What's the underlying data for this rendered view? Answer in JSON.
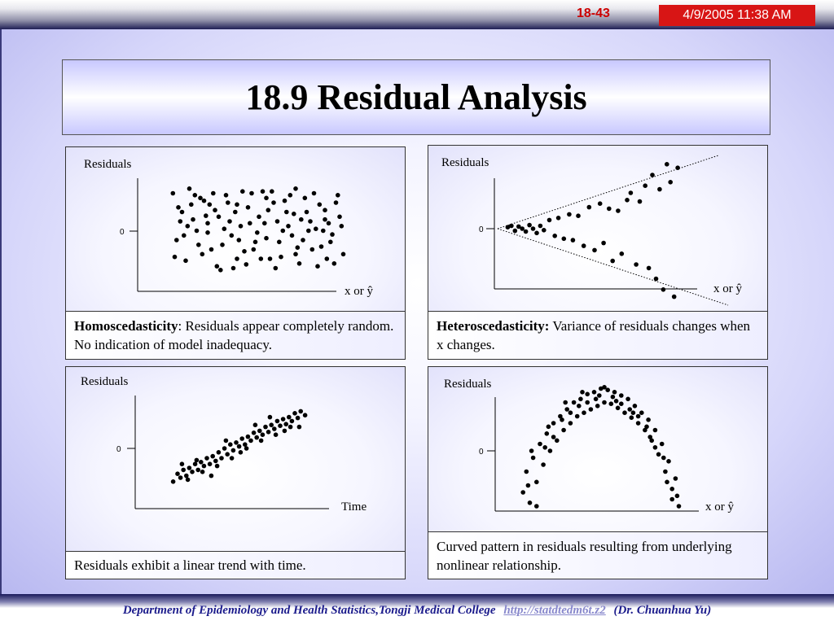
{
  "header": {
    "slide_number": "18-43",
    "datetime": "4/9/2005 11:38 AM"
  },
  "title": "18.9  Residual Analysis",
  "footer": {
    "department": "Department of Epidemiology and Health Statistics,Tongji Medical College",
    "link": "http://statdtedm6t.z2",
    "author": "(Dr. Chuanhua Yu)"
  },
  "colors": {
    "title_gradient": "#c8c8ff",
    "accent_red": "#d81515",
    "footer_text": "#1c1c8c"
  },
  "chart_data": [
    {
      "type": "scatter",
      "pattern": "homoscedastic",
      "ylabel": "Residuals",
      "xlabel": "x or ŷ",
      "zero_tick": "0",
      "caption_bold": "Homoscedasticity",
      "caption_text": ": Residuals appear completely random.  No indication of model inadequacy.",
      "points": [
        [
          0.05,
          0.9
        ],
        [
          0.1,
          0.7
        ],
        [
          0.14,
          0.95
        ],
        [
          0.18,
          0.5
        ],
        [
          0.22,
          0.82
        ],
        [
          0.26,
          0.3
        ],
        [
          0.3,
          0.65
        ],
        [
          0.34,
          0.88
        ],
        [
          0.38,
          0.1
        ],
        [
          0.42,
          0.55
        ],
        [
          0.46,
          0.75
        ],
        [
          0.5,
          0.38
        ],
        [
          0.54,
          0.92
        ],
        [
          0.58,
          0.2
        ],
        [
          0.62,
          0.6
        ],
        [
          0.66,
          0.82
        ],
        [
          0.7,
          0.45
        ],
        [
          0.74,
          0.15
        ],
        [
          0.78,
          0.7
        ],
        [
          0.82,
          0.9
        ],
        [
          0.86,
          0.33
        ],
        [
          0.9,
          0.58
        ],
        [
          0.94,
          0.8
        ],
        [
          0.98,
          0.25
        ],
        [
          0.07,
          0.4
        ],
        [
          0.12,
          0.18
        ],
        [
          0.16,
          0.62
        ],
        [
          0.2,
          0.85
        ],
        [
          0.24,
          0.48
        ],
        [
          0.28,
          0.72
        ],
        [
          0.32,
          0.35
        ],
        [
          0.36,
          0.6
        ],
        [
          0.4,
          0.78
        ],
        [
          0.44,
          0.28
        ],
        [
          0.48,
          0.9
        ],
        [
          0.52,
          0.65
        ],
        [
          0.56,
          0.42
        ],
        [
          0.6,
          0.8
        ],
        [
          0.64,
          0.22
        ],
        [
          0.68,
          0.55
        ],
        [
          0.72,
          0.95
        ],
        [
          0.76,
          0.4
        ],
        [
          0.8,
          0.6
        ],
        [
          0.84,
          0.12
        ],
        [
          0.88,
          0.72
        ],
        [
          0.92,
          0.46
        ],
        [
          0.96,
          0.65
        ],
        [
          0.09,
          0.6
        ],
        [
          0.15,
          0.78
        ],
        [
          0.21,
          0.25
        ],
        [
          0.27,
          0.9
        ],
        [
          0.33,
          0.52
        ],
        [
          0.39,
          0.7
        ],
        [
          0.45,
          0.14
        ],
        [
          0.51,
          0.48
        ],
        [
          0.57,
          0.72
        ],
        [
          0.63,
          0.38
        ],
        [
          0.69,
          0.88
        ],
        [
          0.75,
          0.62
        ],
        [
          0.81,
          0.3
        ],
        [
          0.87,
          0.5
        ],
        [
          0.93,
          0.15
        ],
        [
          0.06,
          0.22
        ],
        [
          0.11,
          0.45
        ],
        [
          0.17,
          0.88
        ],
        [
          0.23,
          0.66
        ],
        [
          0.29,
          0.12
        ],
        [
          0.35,
          0.8
        ],
        [
          0.41,
          0.4
        ],
        [
          0.47,
          0.58
        ],
        [
          0.53,
          0.2
        ],
        [
          0.59,
          0.92
        ],
        [
          0.65,
          0.5
        ],
        [
          0.71,
          0.68
        ],
        [
          0.77,
          0.85
        ],
        [
          0.83,
          0.52
        ],
        [
          0.89,
          0.2
        ],
        [
          0.95,
          0.88
        ],
        [
          0.13,
          0.55
        ],
        [
          0.19,
          0.35
        ],
        [
          0.25,
          0.78
        ],
        [
          0.31,
          0.08
        ],
        [
          0.37,
          0.45
        ],
        [
          0.43,
          0.92
        ],
        [
          0.49,
          0.3
        ],
        [
          0.55,
          0.58
        ],
        [
          0.61,
          0.1
        ],
        [
          0.67,
          0.7
        ],
        [
          0.73,
          0.32
        ],
        [
          0.79,
          0.5
        ],
        [
          0.85,
          0.78
        ],
        [
          0.91,
          0.38
        ],
        [
          0.97,
          0.55
        ],
        [
          0.08,
          0.75
        ],
        [
          0.24,
          0.58
        ],
        [
          0.4,
          0.2
        ],
        [
          0.56,
          0.85
        ],
        [
          0.72,
          0.25
        ],
        [
          0.88,
          0.62
        ]
      ]
    },
    {
      "type": "scatter",
      "pattern": "heteroscedastic",
      "ylabel": "Residuals",
      "xlabel": "x or ŷ",
      "zero_tick": "0",
      "caption_bold": "Heteroscedasticity:",
      "caption_text": " Variance of residuals changes when x changes.",
      "points": [
        [
          0.02,
          0.02
        ],
        [
          0.04,
          0.04
        ],
        [
          0.06,
          -0.03
        ],
        [
          0.08,
          0.03
        ],
        [
          0.1,
          0.0
        ],
        [
          0.12,
          -0.04
        ],
        [
          0.14,
          0.05
        ],
        [
          0.16,
          0.0
        ],
        [
          0.18,
          -0.06
        ],
        [
          0.2,
          0.04
        ],
        [
          0.22,
          -0.02
        ],
        [
          0.25,
          0.12
        ],
        [
          0.28,
          -0.1
        ],
        [
          0.3,
          0.15
        ],
        [
          0.33,
          -0.14
        ],
        [
          0.36,
          0.2
        ],
        [
          0.38,
          -0.16
        ],
        [
          0.41,
          0.18
        ],
        [
          0.44,
          -0.24
        ],
        [
          0.47,
          0.3
        ],
        [
          0.5,
          -0.3
        ],
        [
          0.53,
          0.35
        ],
        [
          0.55,
          -0.2
        ],
        [
          0.58,
          0.28
        ],
        [
          0.6,
          -0.45
        ],
        [
          0.63,
          0.25
        ],
        [
          0.65,
          -0.35
        ],
        [
          0.68,
          0.4
        ],
        [
          0.7,
          0.5
        ],
        [
          0.73,
          -0.5
        ],
        [
          0.75,
          0.38
        ],
        [
          0.78,
          0.6
        ],
        [
          0.8,
          -0.55
        ],
        [
          0.82,
          0.75
        ],
        [
          0.84,
          -0.7
        ],
        [
          0.86,
          0.55
        ],
        [
          0.88,
          -0.85
        ],
        [
          0.9,
          0.9
        ],
        [
          0.92,
          0.65
        ],
        [
          0.94,
          -0.95
        ],
        [
          0.96,
          0.85
        ]
      ]
    },
    {
      "type": "scatter",
      "pattern": "linear-trend",
      "ylabel": "Residuals",
      "xlabel": "Time",
      "zero_tick": "0",
      "caption_text": "Residuals exhibit a linear trend with time.",
      "points": [
        [
          0.02,
          -0.85
        ],
        [
          0.05,
          -0.65
        ],
        [
          0.07,
          -0.75
        ],
        [
          0.09,
          -0.55
        ],
        [
          0.11,
          -0.7
        ],
        [
          0.13,
          -0.5
        ],
        [
          0.15,
          -0.6
        ],
        [
          0.17,
          -0.4
        ],
        [
          0.19,
          -0.55
        ],
        [
          0.21,
          -0.35
        ],
        [
          0.23,
          -0.45
        ],
        [
          0.25,
          -0.25
        ],
        [
          0.27,
          -0.4
        ],
        [
          0.29,
          -0.2
        ],
        [
          0.31,
          -0.32
        ],
        [
          0.33,
          -0.1
        ],
        [
          0.35,
          -0.25
        ],
        [
          0.37,
          0.0
        ],
        [
          0.39,
          -0.15
        ],
        [
          0.41,
          0.1
        ],
        [
          0.43,
          -0.05
        ],
        [
          0.45,
          0.15
        ],
        [
          0.47,
          0.05
        ],
        [
          0.49,
          0.25
        ],
        [
          0.51,
          0.1
        ],
        [
          0.53,
          0.3
        ],
        [
          0.55,
          0.2
        ],
        [
          0.57,
          0.4
        ],
        [
          0.59,
          0.28
        ],
        [
          0.61,
          0.45
        ],
        [
          0.63,
          0.35
        ],
        [
          0.65,
          0.55
        ],
        [
          0.67,
          0.42
        ],
        [
          0.69,
          0.6
        ],
        [
          0.71,
          0.5
        ],
        [
          0.73,
          0.7
        ],
        [
          0.75,
          0.58
        ],
        [
          0.77,
          0.75
        ],
        [
          0.79,
          0.62
        ],
        [
          0.81,
          0.8
        ],
        [
          0.83,
          0.7
        ],
        [
          0.85,
          0.9
        ],
        [
          0.87,
          0.78
        ],
        [
          0.89,
          0.95
        ],
        [
          0.12,
          -0.8
        ],
        [
          0.22,
          -0.6
        ],
        [
          0.32,
          -0.45
        ],
        [
          0.42,
          -0.25
        ],
        [
          0.52,
          0.0
        ],
        [
          0.62,
          0.2
        ],
        [
          0.72,
          0.35
        ],
        [
          0.82,
          0.55
        ],
        [
          0.92,
          0.85
        ],
        [
          0.18,
          -0.3
        ],
        [
          0.38,
          0.2
        ],
        [
          0.58,
          0.6
        ],
        [
          0.78,
          0.45
        ],
        [
          0.08,
          -0.4
        ],
        [
          0.28,
          -0.7
        ],
        [
          0.48,
          -0.1
        ],
        [
          0.68,
          0.8
        ],
        [
          0.88,
          0.55
        ]
      ]
    },
    {
      "type": "scatter",
      "pattern": "curved",
      "ylabel": "Residuals",
      "xlabel": "x or ŷ",
      "zero_tick": "0",
      "caption_text": "Curved pattern in residuals resulting from underlying nonlinear relationship.",
      "points": [
        [
          0.02,
          -0.6
        ],
        [
          0.04,
          -0.3
        ],
        [
          0.06,
          -0.75
        ],
        [
          0.08,
          -0.1
        ],
        [
          0.1,
          -0.45
        ],
        [
          0.12,
          0.1
        ],
        [
          0.14,
          -0.2
        ],
        [
          0.16,
          0.25
        ],
        [
          0.18,
          0.0
        ],
        [
          0.2,
          0.4
        ],
        [
          0.22,
          0.15
        ],
        [
          0.24,
          0.5
        ],
        [
          0.26,
          0.3
        ],
        [
          0.28,
          0.6
        ],
        [
          0.3,
          0.4
        ],
        [
          0.32,
          0.7
        ],
        [
          0.34,
          0.5
        ],
        [
          0.36,
          0.75
        ],
        [
          0.38,
          0.55
        ],
        [
          0.4,
          0.82
        ],
        [
          0.42,
          0.6
        ],
        [
          0.44,
          0.85
        ],
        [
          0.46,
          0.65
        ],
        [
          0.48,
          0.9
        ],
        [
          0.5,
          0.7
        ],
        [
          0.52,
          0.88
        ],
        [
          0.54,
          0.68
        ],
        [
          0.56,
          0.85
        ],
        [
          0.58,
          0.62
        ],
        [
          0.6,
          0.8
        ],
        [
          0.62,
          0.55
        ],
        [
          0.64,
          0.75
        ],
        [
          0.66,
          0.48
        ],
        [
          0.68,
          0.65
        ],
        [
          0.7,
          0.4
        ],
        [
          0.72,
          0.55
        ],
        [
          0.74,
          0.3
        ],
        [
          0.76,
          0.45
        ],
        [
          0.78,
          0.15
        ],
        [
          0.8,
          0.3
        ],
        [
          0.82,
          -0.05
        ],
        [
          0.84,
          0.1
        ],
        [
          0.86,
          -0.3
        ],
        [
          0.88,
          -0.15
        ],
        [
          0.9,
          -0.55
        ],
        [
          0.92,
          -0.4
        ],
        [
          0.94,
          -0.8
        ],
        [
          0.05,
          -0.5
        ],
        [
          0.15,
          0.05
        ],
        [
          0.25,
          0.45
        ],
        [
          0.35,
          0.65
        ],
        [
          0.45,
          0.75
        ],
        [
          0.55,
          0.78
        ],
        [
          0.65,
          0.6
        ],
        [
          0.75,
          0.35
        ],
        [
          0.85,
          -0.1
        ],
        [
          0.93,
          -0.65
        ],
        [
          0.1,
          -0.8
        ],
        [
          0.2,
          0.2
        ],
        [
          0.3,
          0.55
        ],
        [
          0.4,
          0.7
        ],
        [
          0.5,
          0.92
        ],
        [
          0.6,
          0.68
        ],
        [
          0.7,
          0.5
        ],
        [
          0.8,
          0.05
        ],
        [
          0.9,
          -0.7
        ],
        [
          0.07,
          0.0
        ],
        [
          0.17,
          0.35
        ],
        [
          0.27,
          0.7
        ],
        [
          0.37,
          0.85
        ],
        [
          0.47,
          0.8
        ],
        [
          0.57,
          0.72
        ],
        [
          0.67,
          0.55
        ],
        [
          0.77,
          0.2
        ],
        [
          0.87,
          -0.45
        ]
      ]
    }
  ]
}
